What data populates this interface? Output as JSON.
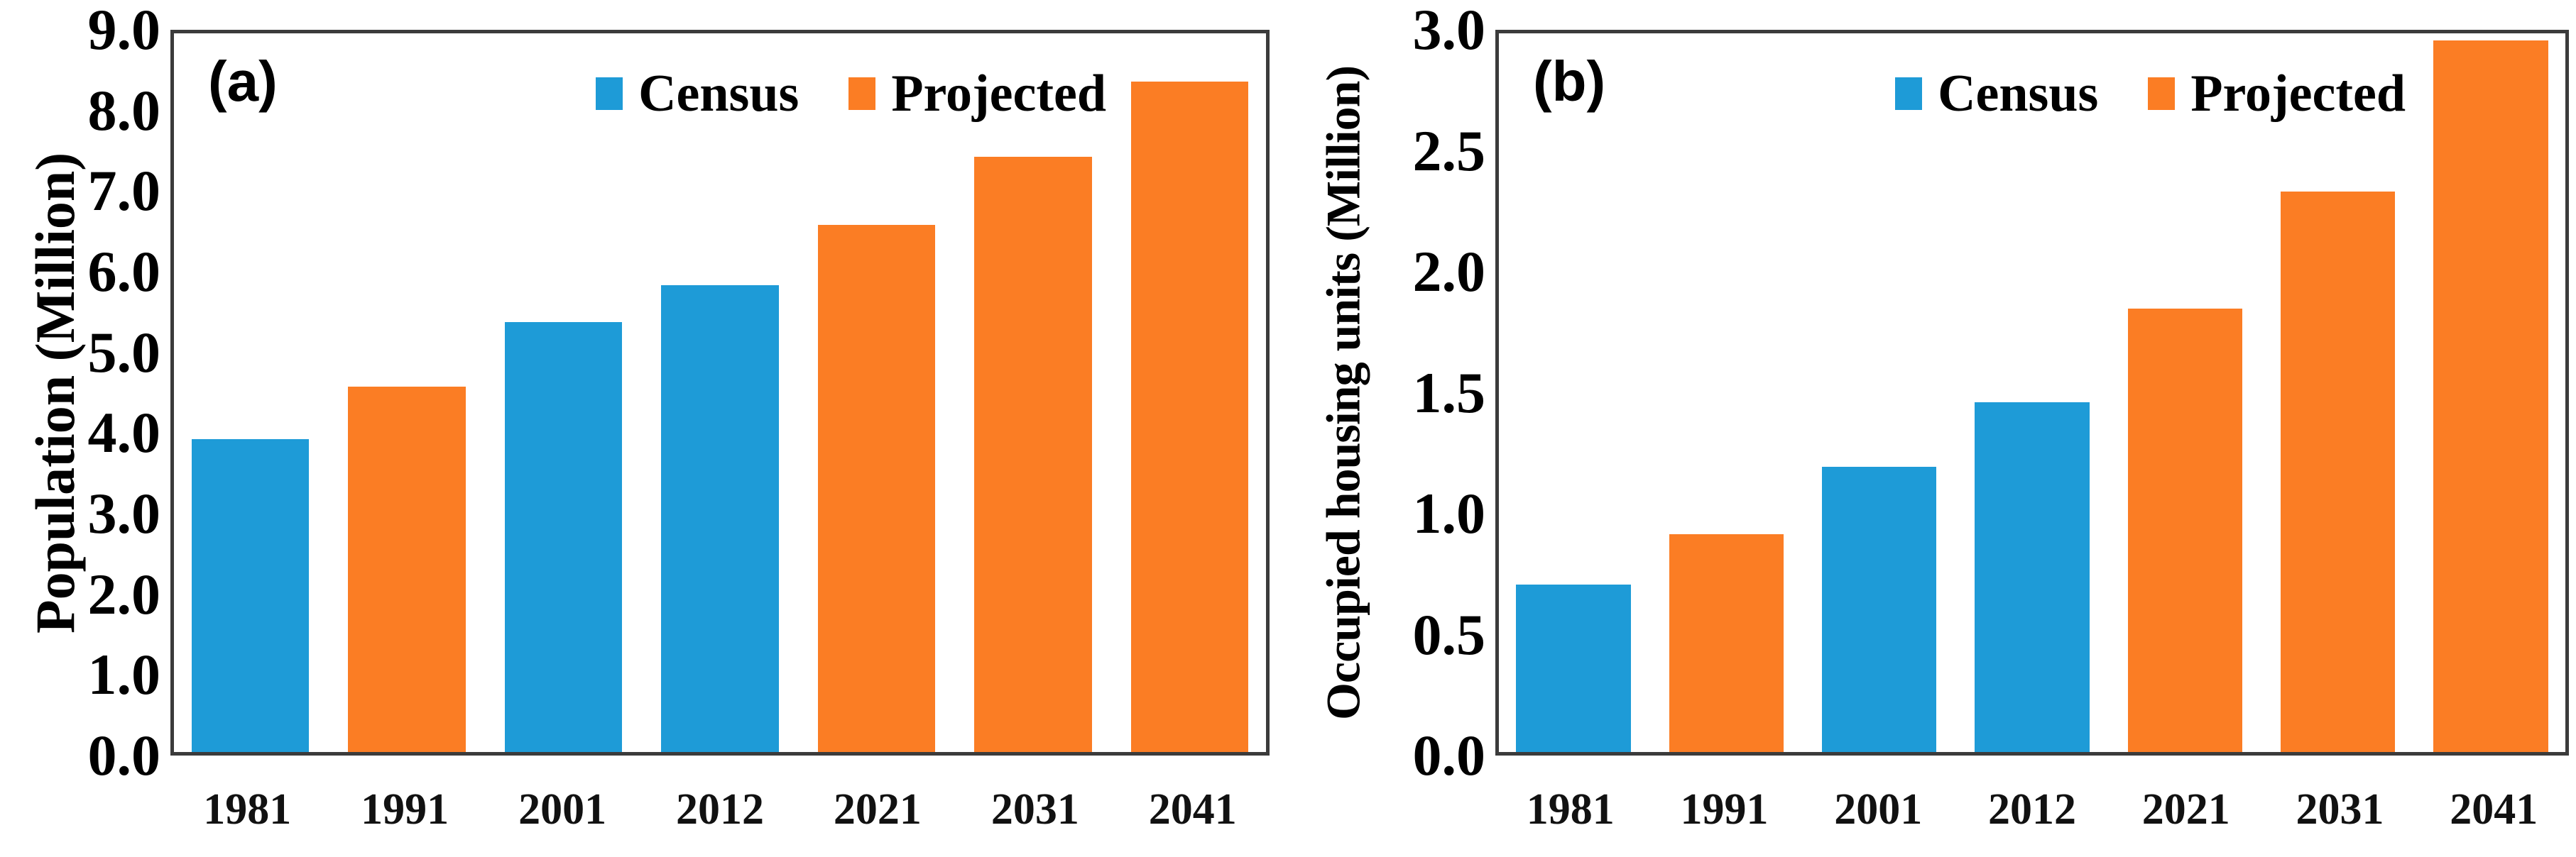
{
  "chart_data": [
    {
      "type": "bar",
      "title": "(a)",
      "categories": [
        "1981",
        "1991",
        "2001",
        "2012",
        "2021",
        "2031",
        "2041"
      ],
      "values": [
        3.92,
        4.58,
        5.38,
        5.85,
        6.6,
        7.45,
        8.4
      ],
      "bar_series": [
        "Census",
        "Projected",
        "Census",
        "Census",
        "Projected",
        "Projected",
        "Projected"
      ],
      "legend": [
        "Census",
        "Projected"
      ],
      "colors": {
        "Census": "#1e9bd7",
        "Projected": "#fb7d24"
      },
      "xlabel": "",
      "ylabel": "Population (Million)",
      "ylim": [
        0.0,
        9.0
      ],
      "ytick_step": 1.0,
      "ytick_decimals": 1,
      "grid": false,
      "legend_position": "top-right"
    },
    {
      "type": "bar",
      "title": "(b)",
      "categories": [
        "1981",
        "1991",
        "2001",
        "2012",
        "2021",
        "2031",
        "2041"
      ],
      "values": [
        0.7,
        0.91,
        1.19,
        1.46,
        1.85,
        2.34,
        2.97
      ],
      "bar_series": [
        "Census",
        "Projected",
        "Census",
        "Census",
        "Projected",
        "Projected",
        "Projected"
      ],
      "legend": [
        "Census",
        "Projected"
      ],
      "colors": {
        "Census": "#1e9bd7",
        "Projected": "#fb7d24"
      },
      "xlabel": "",
      "ylabel": "Occupied housing units  (Million)",
      "ylim": [
        0.0,
        3.0
      ],
      "ytick_step": 0.5,
      "ytick_decimals": 1,
      "grid": false,
      "legend_position": "top-right"
    }
  ],
  "frame_color": "#3b3b3b",
  "background_color": "#ffffff"
}
